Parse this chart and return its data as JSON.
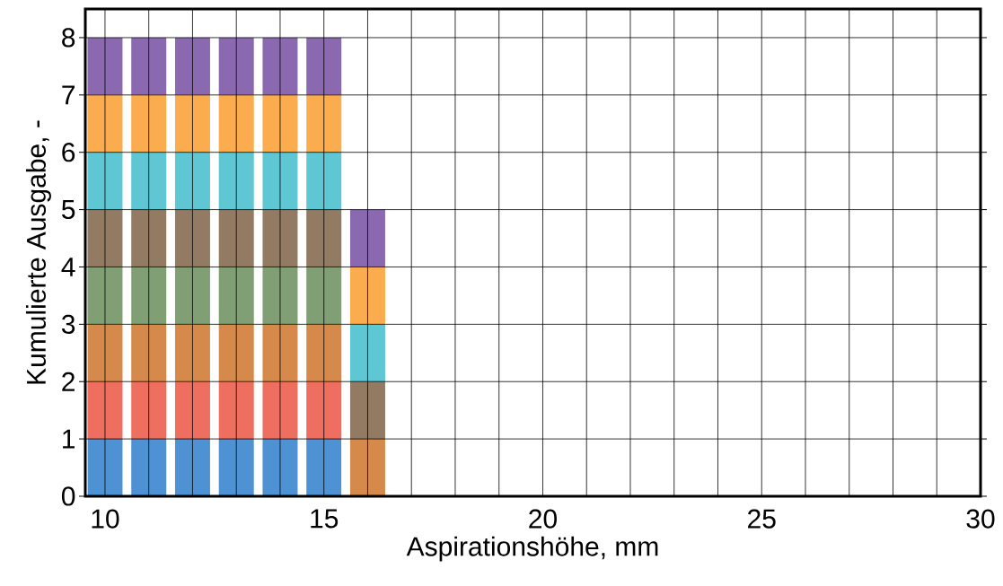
{
  "chart_data": {
    "type": "bar",
    "stacked": true,
    "xlabel": "Aspirationshöhe, mm",
    "ylabel": "Kumulierte Ausgabe, -",
    "x": [
      10,
      11,
      12,
      13,
      14,
      15,
      16
    ],
    "series": [
      {
        "color": "#4f92d3",
        "values": [
          1,
          1,
          1,
          1,
          1,
          1,
          0
        ]
      },
      {
        "color": "#ee6f5f",
        "values": [
          1,
          1,
          1,
          1,
          1,
          1,
          0
        ]
      },
      {
        "color": "#d58a4c",
        "values": [
          1,
          1,
          1,
          1,
          1,
          1,
          1
        ]
      },
      {
        "color": "#819f74",
        "values": [
          1,
          1,
          1,
          1,
          1,
          1,
          0
        ]
      },
      {
        "color": "#937b63",
        "values": [
          1,
          1,
          1,
          1,
          1,
          1,
          1
        ]
      },
      {
        "color": "#5fc7d3",
        "values": [
          1,
          1,
          1,
          1,
          1,
          1,
          1
        ]
      },
      {
        "color": "#fbac4f",
        "values": [
          1,
          1,
          1,
          1,
          1,
          1,
          1
        ]
      },
      {
        "color": "#8b69b1",
        "values": [
          1,
          1,
          1,
          1,
          1,
          1,
          1
        ]
      }
    ],
    "xlim": [
      9.55,
      30
    ],
    "ylim": [
      0,
      8.5
    ],
    "xticks": [
      10,
      {
        "value": 11,
        "label": null
      },
      {
        "value": 12,
        "label": null
      },
      {
        "value": 13,
        "label": null
      },
      {
        "value": 14,
        "label": null
      },
      15,
      {
        "value": 16,
        "label": null
      },
      {
        "value": 17,
        "label": null
      },
      {
        "value": 18,
        "label": null
      },
      {
        "value": 19,
        "label": null
      },
      20,
      {
        "value": 21,
        "label": null
      },
      {
        "value": 22,
        "label": null
      },
      {
        "value": 23,
        "label": null
      },
      {
        "value": 24,
        "label": null
      },
      25,
      {
        "value": 26,
        "label": null
      },
      {
        "value": 27,
        "label": null
      },
      {
        "value": 28,
        "label": null
      },
      {
        "value": 29,
        "label": null
      },
      30
    ],
    "yticks": [
      0,
      1,
      2,
      3,
      4,
      5,
      6,
      7,
      8
    ],
    "grid": true
  }
}
